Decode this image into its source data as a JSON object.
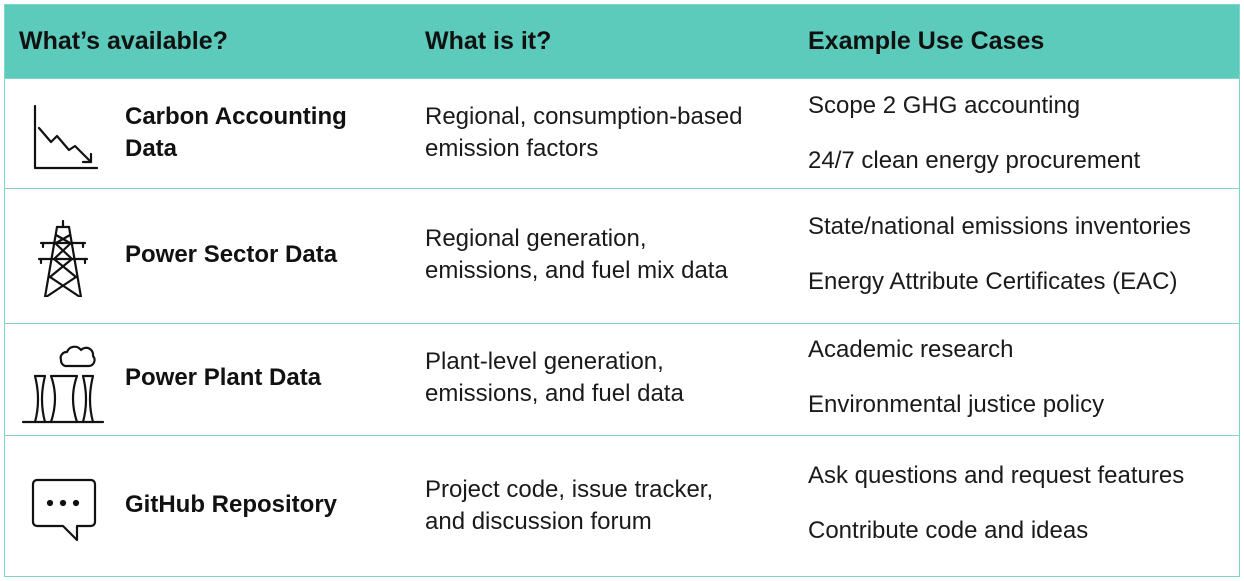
{
  "header": {
    "col1": "What’s available?",
    "col2": "What is it?",
    "col3": "Example Use Cases"
  },
  "rows": [
    {
      "icon": "declining-chart-icon",
      "name_line1": "Carbon Accounting",
      "name_line2": "Data",
      "desc_line1": "Regional, consumption-based",
      "desc_line2": "emission factors",
      "use1": "Scope 2 GHG accounting",
      "use2": "24/7 clean energy procurement"
    },
    {
      "icon": "transmission-tower-icon",
      "name": "Power Sector Data",
      "desc_line1": "Regional generation,",
      "desc_line2": "emissions, and fuel mix data",
      "use1": "State/national emissions inventories",
      "use2": "Energy Attribute Certificates (EAC)"
    },
    {
      "icon": "power-plant-icon",
      "name": "Power Plant Data",
      "desc_line1": "Plant-level generation,",
      "desc_line2": "emissions, and fuel data",
      "use1": "Academic research",
      "use2": "Environmental justice policy"
    },
    {
      "icon": "chat-bubble-icon",
      "name": "GitHub Repository",
      "desc_line1": "Project code, issue tracker,",
      "desc_line2": "and discussion forum",
      "use1": "Ask questions and request features",
      "use2": "Contribute code and ideas"
    }
  ],
  "colors": {
    "header_bg": "#5ccbbb",
    "border": "#7fd6c8"
  }
}
